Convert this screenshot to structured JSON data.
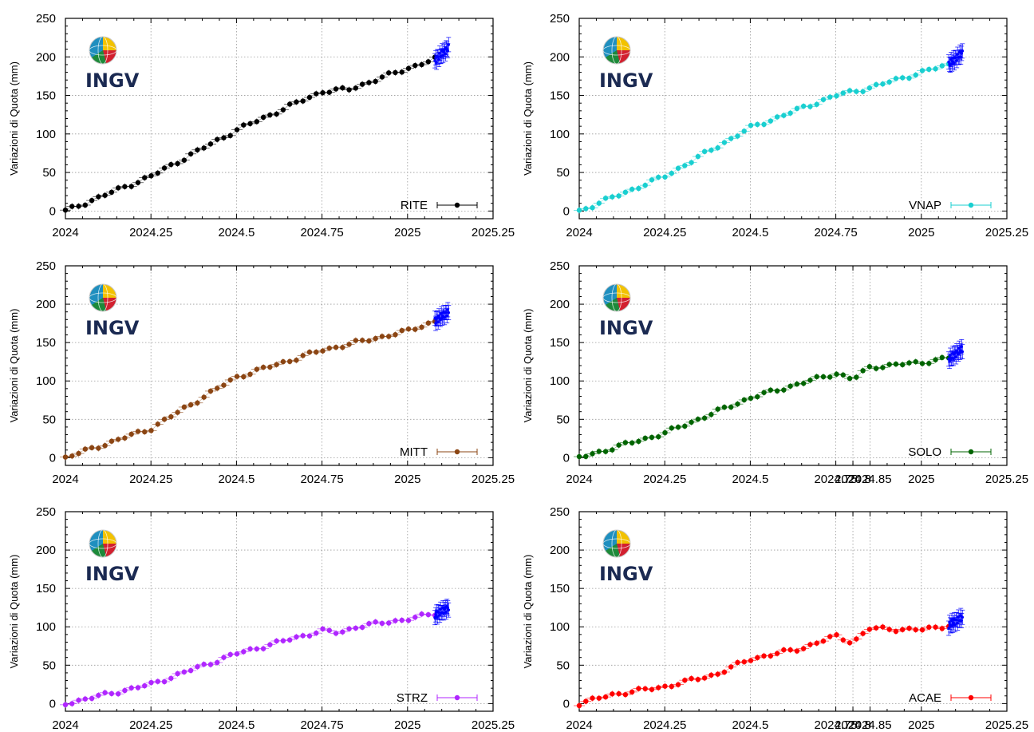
{
  "chart_data": [
    {
      "type": "scatter",
      "station": "RITE",
      "color": "#000000",
      "ylabel": "Variazioni di Quota (mm)",
      "xlim": [
        2024,
        2025.25
      ],
      "ylim": [
        -10,
        250
      ],
      "xticks": [
        "2024",
        "2024.25",
        "2024.5",
        "2024.75",
        "2025",
        "2025.25"
      ],
      "yticks": [
        "0",
        "50",
        "100",
        "150",
        "200",
        "250"
      ],
      "logo": "INGV",
      "grid": true,
      "legend_position": "bottom-right",
      "anchors": {
        "x": [
          2024.0,
          2024.25,
          2024.5,
          2024.75,
          2024.83,
          2025.0,
          2025.08
        ],
        "y": [
          0,
          45,
          105,
          155,
          158,
          185,
          197
        ]
      },
      "recent_x": [
        2025.08,
        2025.12
      ],
      "recent_y": [
        195,
        212
      ]
    },
    {
      "type": "scatter",
      "station": "VNAP",
      "color": "#19cfd0",
      "ylabel": "Variazioni di Quota (mm)",
      "xlim": [
        2024,
        2025.25
      ],
      "ylim": [
        -10,
        250
      ],
      "xticks": [
        "2024",
        "2024.25",
        "2024.5",
        "2024.75",
        "2025",
        "2025.25"
      ],
      "yticks": [
        "0",
        "50",
        "100",
        "150",
        "200",
        "250"
      ],
      "logo": "INGV",
      "grid": true,
      "legend_position": "bottom-right",
      "anchors": {
        "x": [
          2024.0,
          2024.25,
          2024.5,
          2024.75,
          2024.85,
          2025.0,
          2025.08
        ],
        "y": [
          0,
          45,
          108,
          150,
          160,
          180,
          190
        ]
      },
      "recent_x": [
        2025.08,
        2025.12
      ],
      "recent_y": [
        190,
        205
      ]
    },
    {
      "type": "scatter",
      "station": "MITT",
      "color": "#8b4513",
      "ylabel": "Variazioni di Quota (mm)",
      "xlim": [
        2024,
        2025.25
      ],
      "ylim": [
        -10,
        250
      ],
      "xticks": [
        "2024",
        "2024.25",
        "2024.5",
        "2024.75",
        "2025",
        "2025.25"
      ],
      "yticks": [
        "0",
        "50",
        "100",
        "150",
        "200",
        "250"
      ],
      "logo": "INGV",
      "grid": true,
      "legend_position": "bottom-right",
      "anchors": {
        "x": [
          2024.0,
          2024.25,
          2024.5,
          2024.75,
          2025.0,
          2025.08
        ],
        "y": [
          0,
          38,
          105,
          140,
          165,
          178
        ]
      },
      "recent_x": [
        2025.08,
        2025.12
      ],
      "recent_y": [
        178,
        190
      ]
    },
    {
      "type": "scatter",
      "station": "SOLO",
      "color": "#006400",
      "ylabel": "Variazioni di Quota (mm)",
      "xlim": [
        2024,
        2025.25
      ],
      "ylim": [
        -10,
        250
      ],
      "xticks": [
        "2024",
        "2024.25",
        "2024.5",
        "2024.75",
        "2024.8",
        "2024.85",
        "2025",
        "2025.25"
      ],
      "yticks": [
        "0",
        "50",
        "100",
        "150",
        "200",
        "250"
      ],
      "logo": "INGV",
      "grid": true,
      "legend_position": "bottom-right",
      "anchors": {
        "x": [
          2024.0,
          2024.25,
          2024.5,
          2024.75,
          2024.8,
          2024.85,
          2025.0,
          2025.08
        ],
        "y": [
          0,
          32,
          78,
          110,
          102,
          118,
          124,
          130
        ]
      },
      "recent_x": [
        2025.08,
        2025.12
      ],
      "recent_y": [
        128,
        142
      ]
    },
    {
      "type": "scatter",
      "station": "STRZ",
      "color": "#b026ff",
      "ylabel": "Variazioni di Quota (mm)",
      "xlim": [
        2024,
        2025.25
      ],
      "ylim": [
        -10,
        250
      ],
      "xticks": [
        "2024",
        "2024.25",
        "2024.5",
        "2024.75",
        "2025",
        "2025.25"
      ],
      "yticks": [
        "0",
        "50",
        "100",
        "150",
        "200",
        "250"
      ],
      "logo": "INGV",
      "grid": true,
      "legend_position": "bottom-right",
      "anchors": {
        "x": [
          2024.0,
          2024.25,
          2024.5,
          2024.75,
          2024.8,
          2024.85,
          2025.0,
          2025.08
        ],
        "y": [
          0,
          25,
          65,
          95,
          92,
          100,
          110,
          117
        ]
      },
      "recent_x": [
        2025.08,
        2025.12
      ],
      "recent_y": [
        115,
        125
      ]
    },
    {
      "type": "scatter",
      "station": "ACAE",
      "color": "#ff0000",
      "ylabel": "Variazioni di Quota (mm)",
      "xlim": [
        2024,
        2025.25
      ],
      "ylim": [
        -10,
        250
      ],
      "xticks": [
        "2024",
        "2024.25",
        "2024.5",
        "2024.75",
        "2024.8",
        "2024.85",
        "2025",
        "2025.25"
      ],
      "yticks": [
        "0",
        "50",
        "100",
        "150",
        "200",
        "250"
      ],
      "logo": "INGV",
      "grid": true,
      "legend_position": "bottom-right",
      "anchors": {
        "x": [
          2024.0,
          2024.1,
          2024.25,
          2024.4,
          2024.5,
          2024.65,
          2024.75,
          2024.8,
          2024.85,
          2025.0,
          2025.08
        ],
        "y": [
          0,
          12,
          22,
          38,
          58,
          72,
          88,
          80,
          98,
          96,
          102
        ]
      },
      "recent_x": [
        2025.08,
        2025.12
      ],
      "recent_y": [
        102,
        112
      ]
    }
  ]
}
